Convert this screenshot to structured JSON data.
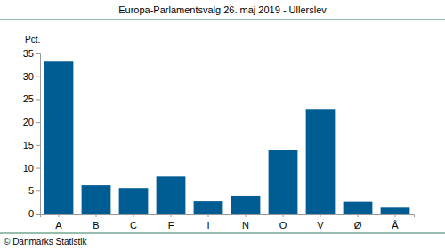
{
  "chart_data": {
    "type": "bar",
    "title": "Europa-Parlamentsvalg 26. maj 2019 - Ullerslev",
    "y_label": "Pct.",
    "annotations": [
      "© Danmarks Statistik"
    ],
    "categories": [
      "A",
      "B",
      "C",
      "F",
      "I",
      "N",
      "O",
      "V",
      "Ø",
      "Å"
    ],
    "values": [
      33.2,
      6.2,
      5.6,
      8.1,
      2.7,
      3.9,
      14.0,
      22.7,
      2.6,
      1.3
    ],
    "color": "#005d94",
    "ylim": [
      0,
      35
    ],
    "yticks": [
      0,
      5,
      10,
      15,
      20,
      25,
      30,
      35
    ],
    "grid": false
  }
}
